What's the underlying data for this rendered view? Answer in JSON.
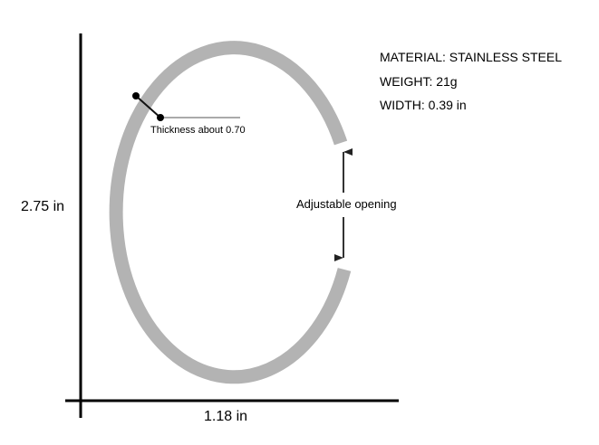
{
  "specs": {
    "material": "MATERIAL: STAINLESS STEEL",
    "weight": "WEIGHT: 21g",
    "width": "WIDTH: 0.39 in"
  },
  "labels": {
    "height": "2.75 in",
    "width": "1.18 in",
    "thickness": "Thickness about 0.70",
    "opening": "Adjustable opening"
  },
  "colors": {
    "ring": "#b3b3b3",
    "axis": "#000000"
  }
}
